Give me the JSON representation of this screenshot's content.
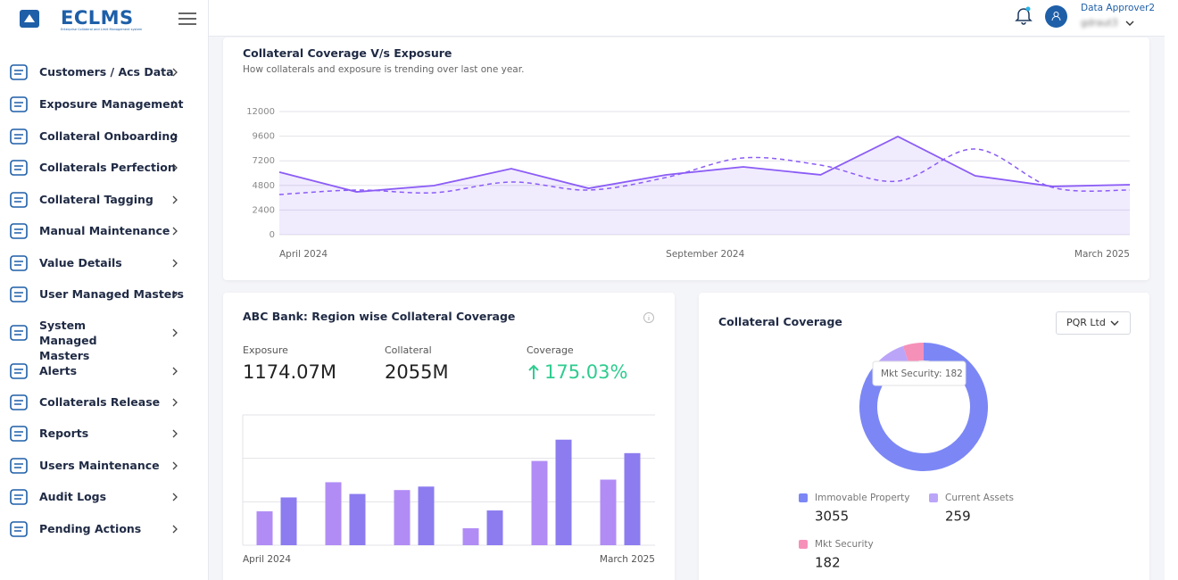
{
  "header": {
    "logo": "ECLMS",
    "logo_subtitle": "Enterprise Collateral and Limit Management system",
    "user_role": "Data Approver2",
    "user_name": "gdraut3"
  },
  "sidebar": {
    "items": [
      "Customers / Acs Data",
      "Exposure Management",
      "Collateral Onboarding",
      "Collaterals Perfection",
      "Collateral Tagging",
      "Manual Maintenance",
      "Value Details",
      "User Managed Masters",
      "System Managed Masters",
      "Alerts",
      "Collaterals Release",
      "Reports",
      "Users Maintenance",
      "Audit Logs",
      "Pending Actions"
    ]
  },
  "chart_data": [
    {
      "type": "line",
      "title": "Collateral Coverage V/s Exposure",
      "subtitle": "How collaterals and exposure is trending over last one year.",
      "categories": [
        "April 2024",
        null,
        null,
        null,
        null,
        "September 2024",
        null,
        null,
        null,
        null,
        null,
        "March 2025"
      ],
      "series": [
        {
          "color": "#8b5cf6",
          "style": "solid",
          "fill": true,
          "values": [
            6100,
            4170,
            4780,
            6430,
            4520,
            5830,
            6610,
            5830,
            9570,
            5740,
            4700,
            4870
          ]
        },
        {
          "color": "#8b5cf6",
          "style": "dashed",
          "fill": false,
          "values": [
            3910,
            4350,
            4090,
            5130,
            4350,
            5570,
            7480,
            6780,
            5220,
            8350,
            4610,
            4350
          ]
        }
      ],
      "ylim": [
        0,
        12000
      ],
      "yticks": [
        0,
        2400,
        4800,
        7200,
        9600,
        12000
      ],
      "grid": true
    },
    {
      "type": "bar",
      "title": "ABC Bank: Region wise Collateral Coverage",
      "stats": [
        {
          "label": "Exposure",
          "value": "1174.07M"
        },
        {
          "label": "Collateral",
          "value": "2055M"
        },
        {
          "label": "Coverage",
          "value": "175.03%"
        }
      ],
      "categories": [
        "April 2024",
        null,
        null,
        null,
        null,
        "March 2025"
      ],
      "series": [
        {
          "color": "#b18cf5",
          "values": [
            0.78,
            1.45,
            1.27,
            0.39,
            1.94,
            1.51
          ]
        },
        {
          "color": "#8c7cf0",
          "values": [
            1.1,
            1.18,
            1.35,
            0.8,
            2.43,
            2.12
          ]
        }
      ],
      "ylim": [
        0,
        3
      ],
      "grid": true
    },
    {
      "type": "pie",
      "title": "Collateral Coverage",
      "dropdown": "PQR Ltd",
      "tooltip": "Mkt Security: 182",
      "categories": [
        "Immovable Property",
        "Current Assets",
        "Mkt Security"
      ],
      "values": [
        3055,
        259,
        182
      ],
      "colors": [
        "#7c87f5",
        "#bba5f8",
        "#f590b9"
      ]
    }
  ]
}
